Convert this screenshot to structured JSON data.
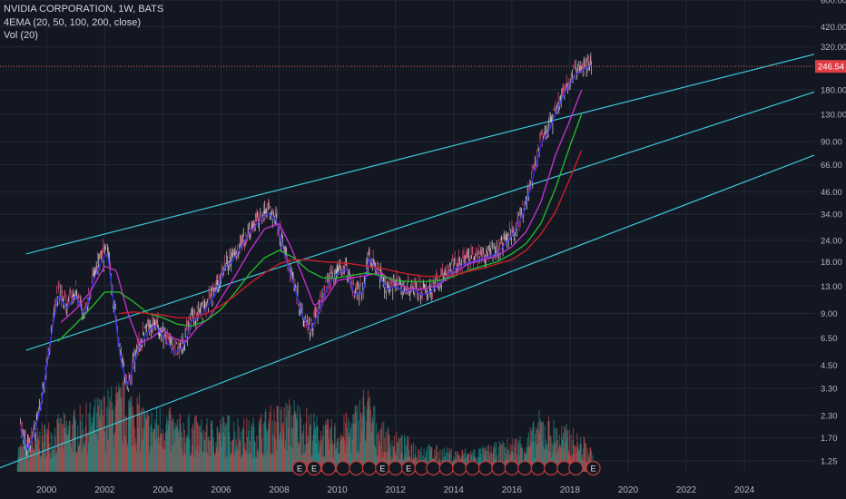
{
  "header": {
    "symbol": "NVIDIA CORPORATION, 1W, BATS",
    "indicator": "4EMA (20, 50, 100, 200, close)",
    "volume": "Vol (20)"
  },
  "price_label": "246.54",
  "colors": {
    "background": "#131722",
    "grid": "#242838",
    "channel": "#3ec6d6",
    "ema20": "#2a32ff",
    "ema50": "#c030c8",
    "ema100": "#25b52c",
    "ema200": "#c81e28",
    "price_line": "#f05a5a",
    "up": "#26a69a",
    "down": "#ef5350",
    "event": "#c23a3a"
  },
  "chart_data": {
    "type": "line",
    "title": "NVIDIA CORPORATION, 1W, BATS",
    "scale": "log",
    "xlim": [
      1998.4,
      2026.4
    ],
    "ylim": [
      1.08,
      600
    ],
    "x_ticks": [
      "2000",
      "2002",
      "2004",
      "2006",
      "2008",
      "2010",
      "2012",
      "2014",
      "2016",
      "2018",
      "2020",
      "2022",
      "2024"
    ],
    "y_ticks": [
      "600.00",
      "420.00",
      "320.00",
      "180.00",
      "130.00",
      "90.00",
      "66.00",
      "46.00",
      "34.00",
      "24.00",
      "18.00",
      "13.00",
      "9.00",
      "6.50",
      "4.50",
      "3.30",
      "2.30",
      "1.70",
      "1.25"
    ],
    "last_price": 246.54,
    "grid": true,
    "series": [
      {
        "x": [
          1999.1,
          1999.35,
          1999.6,
          1999.85,
          2000.1,
          2000.4,
          2000.7,
          2001.0,
          2001.3,
          2001.6,
          2001.9,
          2002.1,
          2002.3,
          2002.55,
          2002.8,
          2003.1,
          2003.4,
          2003.7,
          2004.0,
          2004.4,
          2004.7,
          2005.0,
          2005.4,
          2005.8,
          2006.1,
          2006.4,
          2006.7,
          2007.0,
          2007.3,
          2007.6,
          2007.9,
          2008.2,
          2008.5,
          2008.8,
          2009.1,
          2009.4,
          2009.7,
          2010.0,
          2010.3,
          2010.6,
          2010.9,
          2011.1,
          2011.4,
          2011.7,
          2012.0,
          2012.3,
          2012.6,
          2012.9,
          2013.2,
          2013.6,
          2014.0,
          2014.5,
          2015.0,
          2015.5,
          2015.8,
          2016.1,
          2016.4,
          2016.7,
          2017.0,
          2017.3,
          2017.6,
          2017.9,
          2018.2,
          2018.5,
          2018.75
        ],
        "y": [
          2.0,
          1.5,
          1.9,
          3.0,
          6.0,
          12.0,
          10.0,
          12.0,
          9.0,
          14.5,
          19.0,
          21.0,
          11.0,
          5.0,
          3.5,
          5.5,
          7.0,
          8.0,
          7.0,
          5.5,
          6.0,
          8.5,
          9.5,
          12.0,
          17.0,
          19.0,
          23.0,
          28.0,
          32.0,
          36.0,
          33.0,
          20.0,
          14.0,
          9.0,
          7.5,
          10.0,
          14.0,
          16.0,
          17.0,
          12.0,
          12.5,
          20.0,
          16.0,
          13.0,
          13.5,
          12.5,
          13.0,
          12.0,
          12.5,
          14.5,
          17.0,
          18.5,
          19.5,
          21.0,
          24.0,
          28.0,
          36.0,
          55.0,
          90.0,
          110.0,
          150.0,
          190.0,
          230.0,
          250.0,
          260.0
        ]
      },
      {
        "name": "",
        "x": [
          2000.5,
          2001.0,
          2001.5,
          2002.0,
          2002.4,
          2002.8,
          2003.2,
          2003.6,
          2004.0,
          2004.4,
          2004.8,
          2005.2,
          2005.6,
          2006.0,
          2006.5,
          2007.0,
          2007.5,
          2008.0,
          2008.4,
          2008.8,
          2009.2,
          2009.6,
          2010.0,
          2010.5,
          2011.0,
          2011.5,
          2012.0,
          2012.5,
          2013.0,
          2013.5,
          2014.0,
          2014.5,
          2015.0,
          2015.5,
          2016.0,
          2016.5,
          2017.0,
          2017.5,
          2018.0,
          2018.4
        ],
        "y": [
          8.0,
          9.5,
          12.0,
          17.0,
          16.0,
          9.0,
          6.0,
          6.5,
          7.3,
          6.4,
          6.2,
          7.5,
          8.5,
          11.0,
          15.0,
          21.0,
          28.0,
          30.0,
          22.0,
          15.0,
          10.0,
          11.0,
          14.0,
          14.5,
          15.0,
          15.5,
          13.5,
          12.5,
          12.5,
          13.2,
          15.5,
          17.5,
          18.5,
          19.5,
          22.0,
          27.0,
          40.0,
          75.0,
          120.0,
          180.0
        ]
      },
      {
        "name": "",
        "x": [
          2000.4,
          2001.0,
          2001.6,
          2002.0,
          2002.5,
          2003.0,
          2003.5,
          2004.0,
          2004.5,
          2005.0,
          2005.5,
          2006.0,
          2006.5,
          2007.0,
          2007.5,
          2008.0,
          2008.5,
          2009.0,
          2009.5,
          2010.0,
          2010.5,
          2011.0,
          2011.5,
          2012.0,
          2012.5,
          2013.0,
          2013.5,
          2014.0,
          2014.5,
          2015.0,
          2015.5,
          2016.0,
          2016.5,
          2017.0,
          2017.5,
          2018.0,
          2018.4
        ],
        "y": [
          6.2,
          7.8,
          10.0,
          12.0,
          12.0,
          10.5,
          9.0,
          8.5,
          7.8,
          7.6,
          8.2,
          9.5,
          12.0,
          15.5,
          19.0,
          21.0,
          19.0,
          16.0,
          14.5,
          14.5,
          15.0,
          15.5,
          15.0,
          14.0,
          13.8,
          13.8,
          14.0,
          14.8,
          16.0,
          17.0,
          18.0,
          20.0,
          23.0,
          30.0,
          48.0,
          85.0,
          130.0
        ]
      },
      {
        "name": "",
        "x": [
          2002.5,
          2003.0,
          2003.5,
          2004.0,
          2004.5,
          2005.0,
          2005.5,
          2006.0,
          2006.5,
          2007.0,
          2007.5,
          2008.0,
          2008.5,
          2009.0,
          2009.5,
          2010.0,
          2010.5,
          2011.0,
          2011.5,
          2012.0,
          2012.5,
          2013.0,
          2013.5,
          2014.0,
          2014.5,
          2015.0,
          2015.5,
          2016.0,
          2016.5,
          2017.0,
          2017.5,
          2018.0,
          2018.4
        ],
        "y": [
          9.0,
          9.2,
          9.0,
          8.8,
          8.5,
          8.5,
          9.0,
          10.0,
          11.5,
          13.5,
          15.5,
          17.5,
          18.5,
          18.5,
          18.0,
          17.8,
          17.5,
          17.0,
          16.5,
          15.8,
          15.2,
          14.8,
          14.8,
          15.0,
          15.8,
          16.5,
          17.5,
          18.5,
          21.0,
          26.0,
          35.0,
          55.0,
          80.0
        ]
      }
    ],
    "channels": [
      {
        "x": [
          1999.3,
          2026.4
        ],
        "y": [
          20.0,
          290.0
        ]
      },
      {
        "x": [
          1999.3,
          2026.4
        ],
        "y": [
          5.5,
          175.0
        ]
      },
      {
        "x": [
          1998.4,
          2026.4
        ],
        "y": [
          1.14,
          75.0
        ]
      }
    ],
    "volume_profile": {
      "x": [
        1999.0,
        1999.5,
        2000.0,
        2000.5,
        2001.0,
        2001.5,
        2002.0,
        2002.5,
        2003.0,
        2003.5,
        2004.0,
        2004.5,
        2005.0,
        2005.5,
        2006.0,
        2006.5,
        2007.0,
        2007.5,
        2008.0,
        2008.5,
        2009.0,
        2009.5,
        2010.0,
        2010.5,
        2011.0,
        2011.5,
        2012.0,
        2012.5,
        2013.0,
        2014.0,
        2015.0,
        2016.0,
        2016.5,
        2017.0,
        2017.5,
        2018.0,
        2018.5,
        2018.8
      ],
      "v": [
        0.25,
        0.35,
        0.45,
        0.5,
        0.55,
        0.6,
        0.7,
        0.8,
        0.75,
        0.55,
        0.6,
        0.5,
        0.5,
        0.45,
        0.5,
        0.5,
        0.45,
        0.55,
        0.6,
        0.65,
        0.55,
        0.45,
        0.45,
        0.55,
        0.8,
        0.45,
        0.35,
        0.3,
        0.25,
        0.2,
        0.22,
        0.3,
        0.35,
        0.55,
        0.45,
        0.4,
        0.3,
        0.2
      ]
    },
    "earnings_markers": {
      "label": "E",
      "x": [
        2008.7,
        2009.2,
        2009.7,
        2010.2,
        2010.65,
        2011.1,
        2011.55,
        2012.0,
        2012.45,
        2012.9,
        2013.3,
        2013.75,
        2014.2,
        2014.65,
        2015.1,
        2015.55,
        2016.0,
        2016.45,
        2016.9,
        2017.35,
        2017.8,
        2018.2,
        2018.8
      ],
      "labeled_index": [
        0,
        1,
        6,
        8,
        22
      ]
    }
  }
}
